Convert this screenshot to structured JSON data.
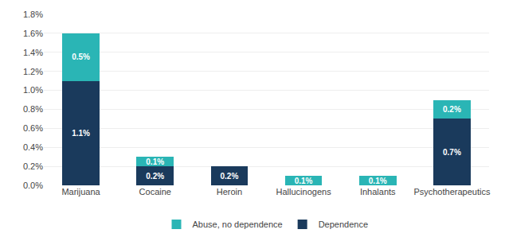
{
  "chart_data": {
    "type": "bar",
    "stacked": true,
    "data_labels": true,
    "grid": true,
    "legend": "bottom",
    "categories": [
      "Marijuana",
      "Cocaine",
      "Heroin",
      "Hallucinogens",
      "Inhalants",
      "Psychotherapeutics"
    ],
    "series": [
      {
        "name": "Dependence",
        "color": "#1a3a5c",
        "values": [
          0.011,
          0.002,
          0.002,
          0.0,
          0.0,
          0.007
        ],
        "value_labels": [
          "1.1%",
          "0.2%",
          "0.2%",
          null,
          null,
          "0.7%"
        ]
      },
      {
        "name": "Abuse, no dependence",
        "color": "#2ab5b5",
        "values": [
          0.005,
          0.001,
          0.0,
          0.001,
          0.001,
          0.002
        ],
        "value_labels": [
          "0.5%",
          "0.1%",
          null,
          "0.1%",
          "0.1%",
          "0.2%"
        ]
      }
    ],
    "ylim": [
      0,
      0.018
    ],
    "yticks": [
      {
        "value": 0,
        "label": "0.0%"
      },
      {
        "value": 0.002,
        "label": "0.2%"
      },
      {
        "value": 0.004,
        "label": "0.4%"
      },
      {
        "value": 0.006,
        "label": "0.6%"
      },
      {
        "value": 0.008,
        "label": "0.8%"
      },
      {
        "value": 0.01,
        "label": "1.0%"
      },
      {
        "value": 0.012,
        "label": "1.2%"
      },
      {
        "value": 0.014,
        "label": "1.4%"
      },
      {
        "value": 0.016,
        "label": "1.6%"
      },
      {
        "value": 0.018,
        "label": "1.8%"
      }
    ]
  }
}
